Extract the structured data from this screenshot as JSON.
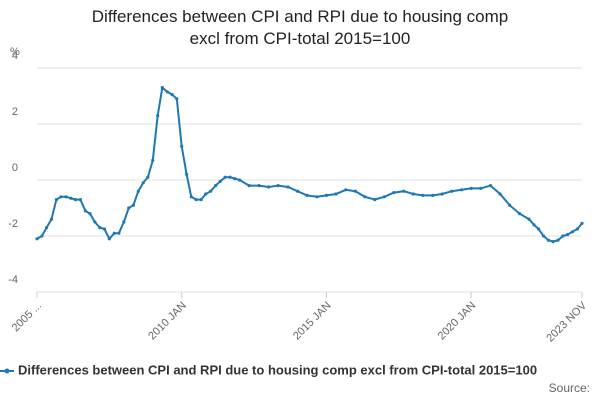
{
  "chart_data": {
    "type": "line",
    "title": "Differences between CPI and RPI due to housing comp excl from CPI-total 2015=100",
    "y_label": "%",
    "source": "Source:",
    "x": [
      2005,
      2005.17,
      2005.33,
      2005.5,
      2005.67,
      2005.83,
      2006,
      2006.17,
      2006.33,
      2006.5,
      2006.67,
      2006.83,
      2007,
      2007.17,
      2007.33,
      2007.5,
      2007.67,
      2007.83,
      2008,
      2008.17,
      2008.33,
      2008.5,
      2008.67,
      2008.83,
      2009,
      2009.17,
      2009.33,
      2009.5,
      2009.67,
      2009.83,
      2010,
      2010.17,
      2010.33,
      2010.5,
      2010.67,
      2010.83,
      2011,
      2011.17,
      2011.33,
      2011.5,
      2011.67,
      2011.83,
      2012,
      2012.33,
      2012.67,
      2013,
      2013.33,
      2013.67,
      2014,
      2014.33,
      2014.67,
      2015,
      2015.33,
      2015.67,
      2016,
      2016.33,
      2016.67,
      2017,
      2017.33,
      2017.67,
      2018,
      2018.33,
      2018.67,
      2019,
      2019.33,
      2019.67,
      2020,
      2020.33,
      2020.67,
      2021,
      2021.33,
      2021.67,
      2022,
      2022.17,
      2022.33,
      2022.5,
      2022.67,
      2022.83,
      2023,
      2023.17,
      2023.33,
      2023.5,
      2023.67,
      2023.83
    ],
    "series": [
      {
        "name": "Differences between CPI and RPI due to housing comp excl from CPI-total 2015=100",
        "color": "#1f78b4",
        "values": [
          -2.1,
          -2.0,
          -1.7,
          -1.4,
          -0.7,
          -0.6,
          -0.6,
          -0.65,
          -0.7,
          -0.7,
          -1.1,
          -1.2,
          -1.5,
          -1.7,
          -1.75,
          -2.1,
          -1.9,
          -1.9,
          -1.5,
          -1.0,
          -0.9,
          -0.4,
          -0.1,
          0.1,
          0.7,
          2.3,
          3.3,
          3.15,
          3.05,
          2.9,
          1.2,
          0.2,
          -0.6,
          -0.7,
          -0.7,
          -0.5,
          -0.4,
          -0.2,
          -0.05,
          0.1,
          0.1,
          0.05,
          0.0,
          -0.2,
          -0.2,
          -0.25,
          -0.2,
          -0.25,
          -0.4,
          -0.55,
          -0.6,
          -0.55,
          -0.5,
          -0.35,
          -0.4,
          -0.6,
          -0.7,
          -0.6,
          -0.45,
          -0.4,
          -0.5,
          -0.55,
          -0.55,
          -0.5,
          -0.4,
          -0.35,
          -0.3,
          -0.3,
          -0.2,
          -0.5,
          -0.9,
          -1.2,
          -1.4,
          -1.6,
          -1.75,
          -2.0,
          -2.15,
          -2.2,
          -2.15,
          -2.0,
          -1.95,
          -1.85,
          -1.75,
          -1.55
        ]
      }
    ],
    "xlim": [
      2005,
      2023.83
    ],
    "xticks": [
      {
        "value": 2005,
        "label": "2005 ..."
      },
      {
        "value": 2010,
        "label": "2010 JAN"
      },
      {
        "value": 2015,
        "label": "2015 JAN"
      },
      {
        "value": 2020,
        "label": "2020 JAN"
      },
      {
        "value": 2023.83,
        "label": "2023 NOV"
      }
    ],
    "ylim": [
      -4,
      4
    ],
    "yticks": [
      -4,
      -2,
      0,
      2,
      4
    ],
    "grid": true
  }
}
